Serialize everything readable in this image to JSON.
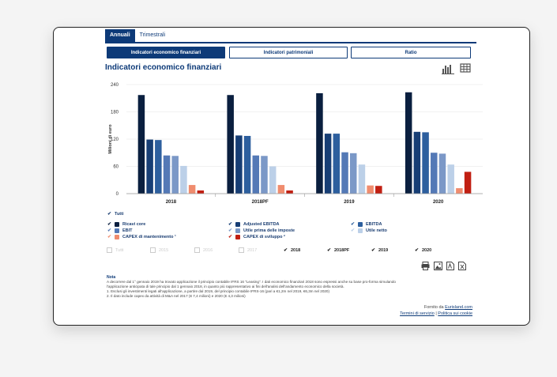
{
  "tabs": [
    {
      "label": "Annuali"
    },
    {
      "label": "Trimestrali"
    }
  ],
  "segments": [
    {
      "label": "Indicatori economico finanziari"
    },
    {
      "label": "Indicatori patrimoniali"
    },
    {
      "label": "Ratio"
    }
  ],
  "title": "Indicatori economico finanziari",
  "icons": {
    "chart": "bar-chart-icon",
    "table": "table-icon"
  },
  "chart_data": {
    "type": "bar",
    "ylabel": "Milioni di euro",
    "ylim": [
      0,
      240
    ],
    "yticks": [
      "0",
      "60",
      "120",
      "180",
      "240"
    ],
    "categories": [
      "2018",
      "2018PF",
      "2019",
      "2020"
    ],
    "series": [
      {
        "name": "Ricavi core",
        "color": "#0a1f3f",
        "values": [
          217,
          217,
          221,
          223
        ]
      },
      {
        "name": "Adjusted EBITDA",
        "color": "#173e75",
        "values": [
          119,
          128,
          132,
          136
        ]
      },
      {
        "name": "EBITDA",
        "color": "#2d5f9e",
        "values": [
          118,
          127,
          132,
          135
        ]
      },
      {
        "name": "EBIT",
        "color": "#5479b6",
        "values": [
          84,
          84,
          91,
          90
        ]
      },
      {
        "name": "Utile prima delle imposte",
        "color": "#7b98c7",
        "values": [
          83,
          83,
          89,
          88
        ]
      },
      {
        "name": "Utile netto",
        "color": "#bcd0e8",
        "values": [
          61,
          60,
          64,
          64
        ]
      },
      {
        "name": "CAPEX di mantenimento ¹",
        "color": "#f08c6e",
        "values": [
          19,
          19,
          18,
          12
        ]
      },
      {
        "name": "CAPEX di sviluppo ²",
        "color": "#c11f12",
        "values": [
          7,
          7,
          17,
          48
        ]
      }
    ]
  },
  "legend_all": "Tutti",
  "years": [
    {
      "label": "Tutti",
      "on": false
    },
    {
      "label": "2015",
      "on": false
    },
    {
      "label": "2016",
      "on": false
    },
    {
      "label": "2017",
      "on": false
    },
    {
      "label": "2018",
      "on": true
    },
    {
      "label": "2018PF",
      "on": true
    },
    {
      "label": "2019",
      "on": true
    },
    {
      "label": "2020",
      "on": true
    }
  ],
  "note": {
    "title": "Nota",
    "line1": "A decorrere dal 1° gennaio 2019 ha trovato applicazione il principio contabile IFRS 16 \"Leasing\". I dati economico finanziari 2018 sono espressi anche su base pro-forma simulando",
    "line2": "l'applicazione anticipata di tale principio dal 1 gennaio 2018, in quanto più rappresentativo ai fini dell'analisi dell'andamento economico della società.",
    "line3": "1. Esclusi gli investimenti legati all'applicazione, a partire dal 2019, del principio contabile IFRS-16 (pari a €1,2m nel 2019, €6,3m nel 2020)",
    "line4": "2. Il dato include capex da attività di M&A nel 2017 (€ 7,4 milioni) e 2020 (€ 4,3 milioni)"
  },
  "footer": {
    "provided": "Fornito da",
    "brand": "Eurisland.com",
    "terms": "Termini di servizio",
    "sep": "|",
    "cookies": "Politica sui cookie"
  }
}
